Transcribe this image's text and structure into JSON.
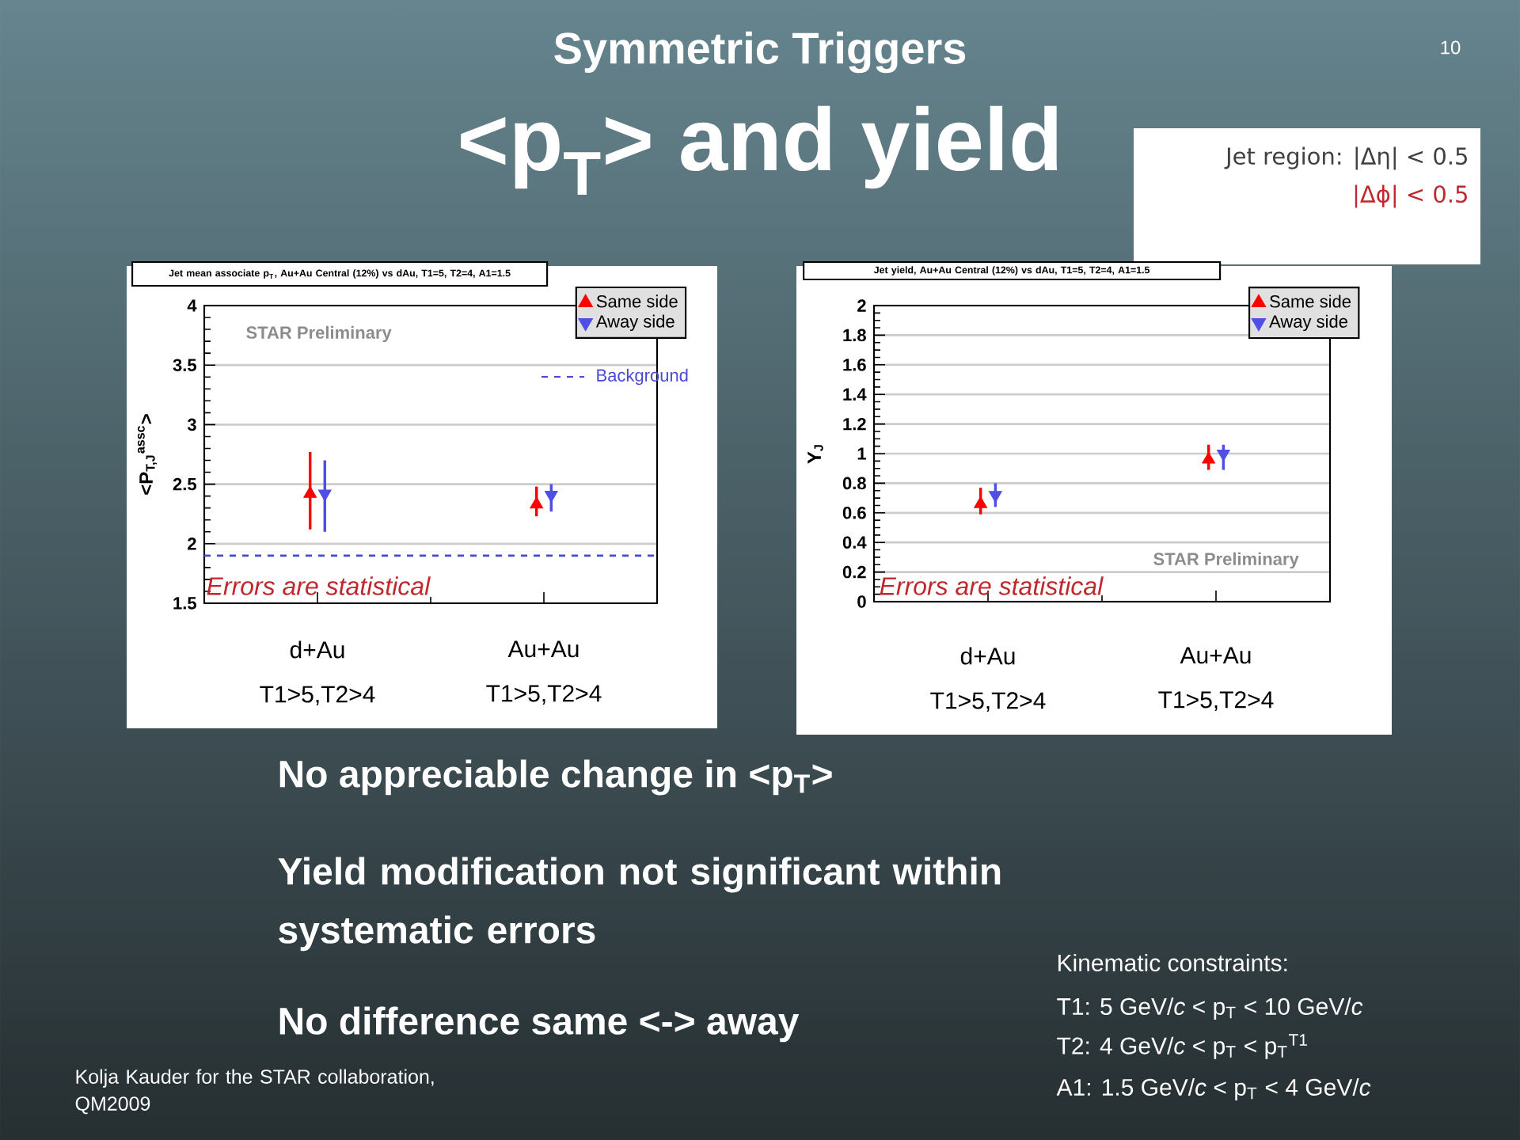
{
  "chart_data": [
    {
      "type": "other",
      "title": "Symmetric Triggers",
      "subtitle": "<p$_{T}$> and yield",
      "annotations": [
        "10",
        "Jet region: |Δη| < 0.5",
        "|Δϕ| < 0.5"
      ]
    },
    {
      "type": "scatter",
      "title": "Jet mean associate p$_{T}$, Au+Au Central (12%) vs dAu, T1=5, T2=4, A1=1.5",
      "ylabel": "<P$_{T,J}$$^{assc}$>",
      "categories": [
        "d+Au T1>5,T2>4",
        "Au+Au T1>5,T2>4"
      ],
      "series": [
        {
          "name": "Same side",
          "color": "#ff0000",
          "marker": "triangle",
          "values": [
            2.42,
            2.33
          ],
          "errors": [
            [
              2.12,
              2.77
            ],
            [
              2.23,
              2.48
            ]
          ]
        },
        {
          "name": "Away side",
          "color": "#4f4fe6",
          "marker": "triangle-down",
          "values": [
            2.42,
            2.41
          ],
          "errors": [
            [
              2.1,
              2.7
            ],
            [
              2.27,
              2.5
            ]
          ]
        }
      ],
      "ylim": [
        1.5,
        4
      ],
      "yticks": [
        1.5,
        2,
        2.5,
        3,
        3.5,
        4
      ],
      "grid": "y",
      "legend": "top right",
      "ref_lines": [
        {
          "axis": "y",
          "value": 1.9,
          "label": "Background",
          "color": "#4a4ad8",
          "line_style": "dashed"
        }
      ],
      "annotations": [
        "STAR Preliminary",
        "Errors are statistical"
      ]
    },
    {
      "type": "scatter",
      "title": "Jet yield, Au+Au Central (12%) vs dAu, T1=5, T2=4, A1=1.5",
      "ylabel": "Y$_{J}$",
      "categories": [
        "d+Au T1>5,T2>4",
        "Au+Au T1>5,T2>4"
      ],
      "series": [
        {
          "name": "Same side",
          "color": "#ff0000",
          "marker": "triangle",
          "values": [
            0.66,
            0.96
          ],
          "errors": [
            [
              0.59,
              0.77
            ],
            [
              0.89,
              1.06
            ]
          ]
        },
        {
          "name": "Away side",
          "color": "#4f4fe6",
          "marker": "triangle-down",
          "values": [
            0.72,
            1.0
          ],
          "errors": [
            [
              0.64,
              0.8
            ],
            [
              0.89,
              1.06
            ]
          ]
        }
      ],
      "ylim": [
        0,
        2
      ],
      "yticks": [
        0,
        0.2,
        0.4,
        0.6,
        0.8,
        1,
        1.2,
        1.4,
        1.6,
        1.8,
        2
      ],
      "grid": "y",
      "legend": "top right",
      "annotations": [
        "STAR Preliminary",
        "Errors are statistical"
      ]
    },
    {
      "type": "other",
      "annotations": [
        "No appreciable change in <p$_{T}$>",
        "Yield modification not significant within systematic errors",
        "No difference same <-> away",
        "Kinematic constraints:",
        "T1: 5 GeV/*c* < p$_{T}$ < 10 GeV/*c*",
        "T2: 4 GeV/*c* < p$_{T}$ < p$_{T}$$^{T1}$",
        "A1: 1.5 GeV/*c* < p$_{T}$ < 4 GeV/*c*",
        "Kolja Kauder for the STAR collaboration, QM2009"
      ]
    }
  ]
}
